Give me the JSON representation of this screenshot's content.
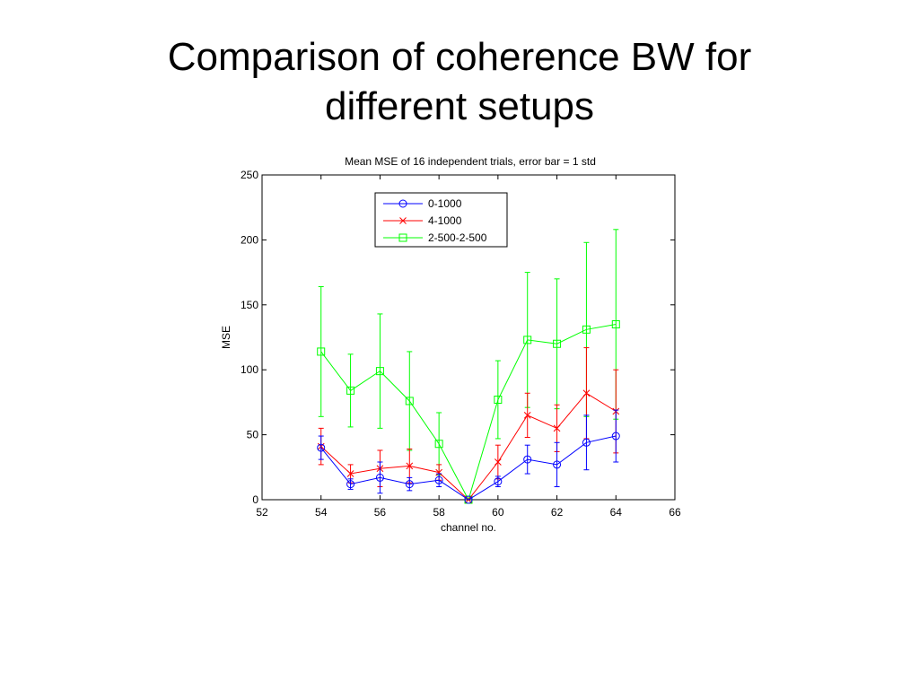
{
  "slide": {
    "title_line1": "Comparison of coherence BW for",
    "title_line2": "different setups"
  },
  "chart_data": {
    "type": "line",
    "title": "Mean MSE of 16 independent trials, error bar = 1 std",
    "xlabel": "channel no.",
    "ylabel": "MSE",
    "xlim": [
      52,
      66
    ],
    "ylim": [
      0,
      250
    ],
    "xticks": [
      52,
      54,
      56,
      58,
      60,
      62,
      64,
      66
    ],
    "yticks": [
      0,
      50,
      100,
      150,
      200,
      250
    ],
    "grid": false,
    "legend_position": "top-left",
    "x": [
      54,
      55,
      56,
      57,
      58,
      59,
      60,
      61,
      62,
      63,
      64
    ],
    "series": [
      {
        "name": "0-1000",
        "color": "#0000ff",
        "marker": "circle",
        "values": [
          40,
          12,
          17,
          12,
          15,
          0,
          14,
          31,
          27,
          44,
          49
        ],
        "error": [
          9,
          4,
          12,
          5,
          5,
          0,
          4,
          11,
          17,
          21,
          20
        ]
      },
      {
        "name": "4-1000",
        "color": "#ff0000",
        "marker": "x",
        "values": [
          41,
          20,
          24,
          26,
          21,
          0,
          29,
          65,
          55,
          82,
          68
        ],
        "error": [
          14,
          7,
          14,
          13,
          6,
          0,
          13,
          17,
          18,
          35,
          32
        ]
      },
      {
        "name": "2-500-2-500",
        "color": "#00ff00",
        "marker": "square",
        "values": [
          114,
          84,
          99,
          76,
          43,
          0,
          77,
          123,
          120,
          131,
          135
        ],
        "error": [
          50,
          28,
          44,
          38,
          24,
          0,
          30,
          52,
          50,
          67,
          73
        ]
      }
    ]
  }
}
